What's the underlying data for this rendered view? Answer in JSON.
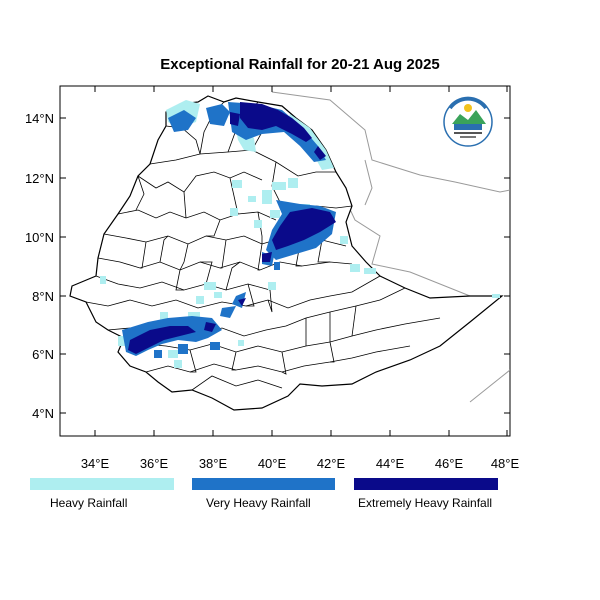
{
  "title": "Exceptional Rainfall for 20-21 Aug 2025",
  "axes": {
    "x_ticks": [
      "34°E",
      "36°E",
      "38°E",
      "40°E",
      "42°E",
      "44°E",
      "46°E",
      "48°E"
    ],
    "y_ticks": [
      "4°N",
      "6°N",
      "8°N",
      "10°N",
      "12°N",
      "14°N"
    ],
    "x_range": [
      32.8,
      48.1
    ],
    "y_range": [
      3.3,
      14.9
    ]
  },
  "legend": [
    {
      "label": "Heavy Rainfall",
      "color": "#aeeef0"
    },
    {
      "label": "Very Heavy Rainfall",
      "color": "#1f73c8"
    },
    {
      "label": "Extremely Heavy Rainfall",
      "color": "#0a0a8a"
    }
  ],
  "logo": {
    "label": "Ethiopian Meteorology Institute"
  }
}
